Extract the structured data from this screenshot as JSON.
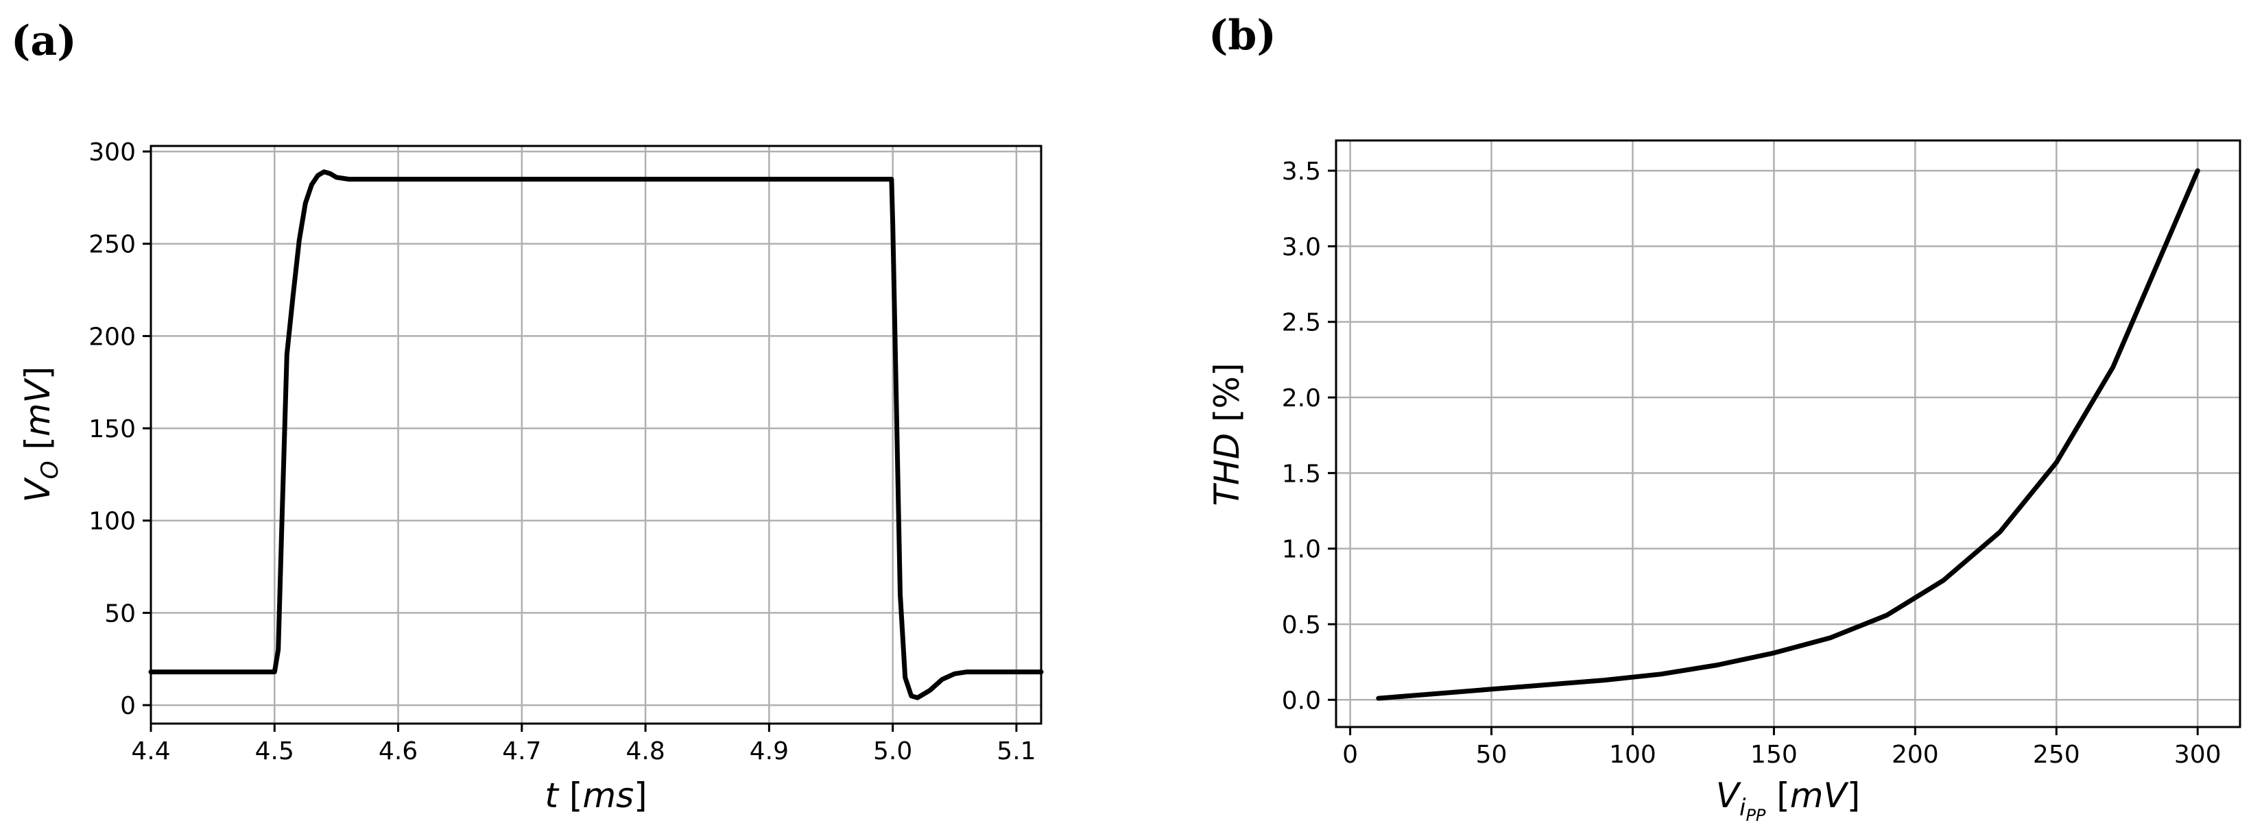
{
  "chart_data": [
    {
      "panel_label": "(a)",
      "type": "line",
      "title": "",
      "xlabel": {
        "sym": "t",
        "unit_open": " [",
        "unit": "ms",
        "unit_close": "]"
      },
      "ylabel": {
        "sym": "V",
        "sub": "O",
        "unit_open": " [",
        "unit": "mV",
        "unit_close": "]"
      },
      "xlim": [
        4.4,
        5.12
      ],
      "ylim": [
        -10,
        303
      ],
      "xticks": [
        4.4,
        4.5,
        4.6,
        4.7,
        4.8,
        4.9,
        5.0,
        5.1
      ],
      "xtick_labels": [
        "4.4",
        "4.5",
        "4.6",
        "4.7",
        "4.8",
        "4.9",
        "5.0",
        "5.1"
      ],
      "yticks": [
        0,
        50,
        100,
        150,
        200,
        250,
        300
      ],
      "ytick_labels": [
        "0",
        "50",
        "100",
        "150",
        "200",
        "250",
        "300"
      ],
      "grid": true,
      "series": [
        {
          "name": "V_O",
          "x": [
            4.4,
            4.5,
            4.503,
            4.506,
            4.51,
            4.515,
            4.52,
            4.525,
            4.53,
            4.535,
            4.54,
            4.545,
            4.55,
            4.56,
            4.57,
            4.6,
            4.7,
            4.8,
            4.9,
            4.999,
            5.0,
            5.003,
            5.006,
            5.01,
            5.015,
            5.02,
            5.03,
            5.04,
            5.05,
            5.06,
            5.08,
            5.12
          ],
          "y": [
            18,
            18,
            30,
            100,
            190,
            222,
            252,
            272,
            282,
            287,
            289,
            288,
            286,
            285,
            285,
            285,
            285,
            285,
            285,
            285,
            260,
            160,
            60,
            15,
            5,
            4,
            8,
            14,
            17,
            18,
            18,
            18
          ]
        }
      ]
    },
    {
      "panel_label": "(b)",
      "type": "line",
      "title": "",
      "xlabel": {
        "sym": "V",
        "sub": "i",
        "subsub": "PP",
        "unit_open": " [",
        "unit": "mV",
        "unit_close": "]"
      },
      "ylabel": {
        "sym": "THD",
        "unit_open": " [",
        "unit": "%",
        "unit_close": "]"
      },
      "xlim": [
        -5,
        315
      ],
      "ylim": [
        -0.18,
        3.7
      ],
      "xticks": [
        0,
        50,
        100,
        150,
        200,
        250,
        300
      ],
      "xtick_labels": [
        "0",
        "50",
        "100",
        "150",
        "200",
        "250",
        "300"
      ],
      "yticks": [
        0.0,
        0.5,
        1.0,
        1.5,
        2.0,
        2.5,
        3.0,
        3.5
      ],
      "ytick_labels": [
        "0.0",
        "0.5",
        "1.0",
        "1.5",
        "2.0",
        "2.5",
        "3.0",
        "3.5"
      ],
      "grid": true,
      "series": [
        {
          "name": "THD",
          "x": [
            10,
            30,
            50,
            70,
            90,
            110,
            130,
            150,
            170,
            190,
            210,
            230,
            250,
            270,
            300
          ],
          "y": [
            0.01,
            0.04,
            0.07,
            0.1,
            0.13,
            0.17,
            0.23,
            0.31,
            0.41,
            0.56,
            0.79,
            1.11,
            1.57,
            2.2,
            3.5
          ]
        }
      ]
    }
  ]
}
